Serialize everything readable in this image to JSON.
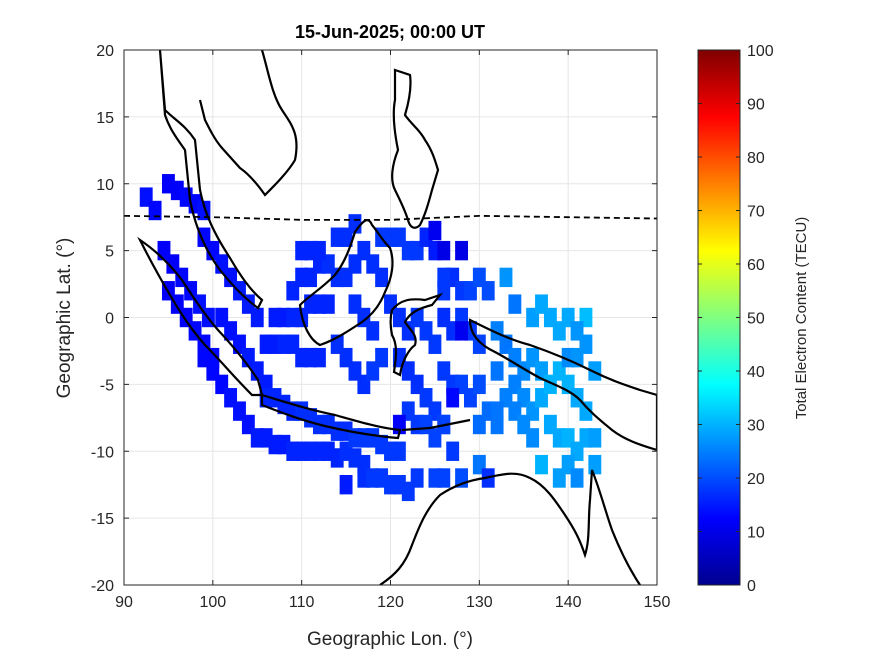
{
  "chart_data": {
    "type": "heatmap",
    "title": "15-Jun-2025; 00:00 UT",
    "xlabel": "Geographic Lon. (°)",
    "ylabel": "Geographic Lat. (°)",
    "xlim": [
      90,
      150
    ],
    "ylim": [
      -20,
      20
    ],
    "xticks": [
      "90",
      "100",
      "110",
      "120",
      "130",
      "140",
      "150"
    ],
    "yticks": [
      "20",
      "15",
      "10",
      "5",
      "0",
      "-5",
      "-10",
      "-15",
      "-20"
    ],
    "grid": true,
    "colorbar": {
      "label": "Total Electron Content (TECU)",
      "range": [
        0,
        100
      ],
      "ticks": [
        "100",
        "90",
        "80",
        "70",
        "60",
        "50",
        "40",
        "30",
        "20",
        "10",
        "0"
      ],
      "colormap": "jet"
    },
    "magnetic_equator": [
      [
        90,
        7.6
      ],
      [
        100,
        7.5
      ],
      [
        110,
        7.3
      ],
      [
        120,
        7.3
      ],
      [
        130,
        7.6
      ],
      [
        140,
        7.5
      ],
      [
        150,
        7.4
      ]
    ],
    "points": [
      [
        92.5,
        9,
        14
      ],
      [
        93.5,
        8,
        13
      ],
      [
        95,
        10,
        12
      ],
      [
        96,
        9.5,
        12
      ],
      [
        97,
        9,
        13
      ],
      [
        98,
        8.5,
        13
      ],
      [
        99,
        8,
        14
      ],
      [
        94.5,
        5,
        12
      ],
      [
        95.5,
        4,
        12
      ],
      [
        96.5,
        3,
        13
      ],
      [
        97.5,
        2,
        13
      ],
      [
        98.5,
        1,
        14
      ],
      [
        99.5,
        0,
        14
      ],
      [
        95,
        2,
        12
      ],
      [
        96,
        1,
        12
      ],
      [
        97,
        0,
        12
      ],
      [
        98,
        -1,
        13
      ],
      [
        99,
        -2,
        13
      ],
      [
        100,
        -3,
        13
      ],
      [
        99,
        6,
        13
      ],
      [
        100,
        5,
        13
      ],
      [
        101,
        4,
        14
      ],
      [
        102,
        3,
        14
      ],
      [
        103,
        2,
        15
      ],
      [
        104,
        1,
        15
      ],
      [
        105,
        0,
        15
      ],
      [
        101,
        0,
        14
      ],
      [
        102,
        -1,
        14
      ],
      [
        103,
        -2,
        14
      ],
      [
        104,
        -3,
        15
      ],
      [
        105,
        -4,
        15
      ],
      [
        106,
        -5,
        15
      ],
      [
        99,
        -3,
        13
      ],
      [
        100,
        -4,
        13
      ],
      [
        101,
        -5,
        13
      ],
      [
        102,
        -6,
        14
      ],
      [
        103,
        -7,
        14
      ],
      [
        104,
        -8,
        14
      ],
      [
        105,
        -9,
        15
      ],
      [
        106,
        -9,
        15
      ],
      [
        107,
        -9.5,
        15
      ],
      [
        108,
        -9.5,
        15
      ],
      [
        109,
        -10,
        16
      ],
      [
        110,
        -10,
        16
      ],
      [
        111,
        -10,
        16
      ],
      [
        112,
        -10,
        16
      ],
      [
        113,
        -10,
        16
      ],
      [
        114,
        -10.5,
        16
      ],
      [
        115,
        -10,
        17
      ],
      [
        116,
        -10.5,
        17
      ],
      [
        117,
        -11,
        17
      ],
      [
        106,
        -6,
        16
      ],
      [
        107,
        -6,
        16
      ],
      [
        108,
        -6.5,
        16
      ],
      [
        109,
        -7,
        16
      ],
      [
        110,
        -7,
        17
      ],
      [
        111,
        -7.5,
        17
      ],
      [
        112,
        -8,
        17
      ],
      [
        113,
        -8,
        17
      ],
      [
        114,
        -8.5,
        17
      ],
      [
        115,
        -8.5,
        17
      ],
      [
        116,
        -9,
        18
      ],
      [
        117,
        -9,
        18
      ],
      [
        118,
        -9,
        18
      ],
      [
        119,
        -9.5,
        18
      ],
      [
        120,
        -10,
        18
      ],
      [
        121,
        -10,
        18
      ],
      [
        106,
        -2,
        15
      ],
      [
        107,
        -2,
        15
      ],
      [
        108,
        -2,
        16
      ],
      [
        109,
        -2,
        16
      ],
      [
        110,
        -3,
        16
      ],
      [
        111,
        -3,
        16
      ],
      [
        112,
        -3,
        16
      ],
      [
        107,
        0,
        15
      ],
      [
        108,
        0,
        15
      ],
      [
        109,
        0,
        16
      ],
      [
        110,
        0,
        16
      ],
      [
        111,
        1,
        16
      ],
      [
        112,
        1,
        16
      ],
      [
        113,
        1,
        16
      ],
      [
        109,
        2,
        16
      ],
      [
        110,
        3,
        16
      ],
      [
        111,
        3,
        16
      ],
      [
        112,
        4,
        16
      ],
      [
        113,
        4,
        17
      ],
      [
        114,
        3,
        17
      ],
      [
        115,
        3,
        17
      ],
      [
        116,
        4,
        17
      ],
      [
        117,
        5,
        17
      ],
      [
        118,
        4,
        17
      ],
      [
        119,
        3,
        17
      ],
      [
        116,
        1,
        17
      ],
      [
        117,
        0,
        17
      ],
      [
        118,
        -1,
        17
      ],
      [
        114,
        -2,
        17
      ],
      [
        115,
        -3,
        17
      ],
      [
        116,
        -4,
        17
      ],
      [
        117,
        -5,
        17
      ],
      [
        118,
        -4,
        18
      ],
      [
        119,
        -3,
        18
      ],
      [
        110,
        5,
        16
      ],
      [
        111,
        5,
        16
      ],
      [
        112,
        5,
        16
      ],
      [
        114,
        6,
        17
      ],
      [
        115,
        6,
        17
      ],
      [
        116,
        7,
        17
      ],
      [
        119,
        6,
        18
      ],
      [
        120,
        6,
        18
      ],
      [
        121,
        6,
        18
      ],
      [
        122,
        5,
        18
      ],
      [
        123,
        5,
        18
      ],
      [
        124,
        6,
        16
      ],
      [
        125,
        5,
        15
      ],
      [
        120,
        1,
        17
      ],
      [
        121,
        0,
        17
      ],
      [
        122,
        -1,
        17
      ],
      [
        123,
        0,
        18
      ],
      [
        124,
        -1,
        18
      ],
      [
        125,
        -2,
        18
      ],
      [
        121,
        -3,
        17
      ],
      [
        122,
        -4,
        17
      ],
      [
        123,
        -5,
        17
      ],
      [
        124,
        -6,
        18
      ],
      [
        125,
        -7,
        18
      ],
      [
        126,
        -8,
        18
      ],
      [
        122,
        -7,
        18
      ],
      [
        123,
        -8,
        18
      ],
      [
        124,
        -8,
        19
      ],
      [
        125,
        -9,
        19
      ],
      [
        126,
        -8,
        19
      ],
      [
        126,
        2,
        18
      ],
      [
        127,
        3,
        17
      ],
      [
        128,
        2,
        18
      ],
      [
        129,
        2,
        19
      ],
      [
        130,
        3,
        20
      ],
      [
        131,
        2,
        20
      ],
      [
        126,
        0,
        17
      ],
      [
        127,
        -1,
        17
      ],
      [
        128,
        0,
        18
      ],
      [
        129,
        -1,
        18
      ],
      [
        130,
        -2,
        19
      ],
      [
        126,
        -4,
        18
      ],
      [
        127,
        -5,
        18
      ],
      [
        128,
        -5,
        19
      ],
      [
        129,
        -6,
        19
      ],
      [
        130,
        -5,
        20
      ],
      [
        117,
        -12,
        17
      ],
      [
        118,
        -12,
        18
      ],
      [
        119,
        -12,
        18
      ],
      [
        120,
        -12.5,
        18
      ],
      [
        121,
        -12.5,
        18
      ],
      [
        122,
        -13,
        18
      ],
      [
        123,
        -12,
        18
      ],
      [
        125,
        -12,
        19
      ],
      [
        126,
        -12,
        19
      ],
      [
        128,
        -12,
        20
      ],
      [
        115,
        -12.5,
        15
      ],
      [
        126,
        5,
        10
      ],
      [
        128,
        5,
        10
      ],
      [
        125,
        6.5,
        11
      ],
      [
        128,
        -1,
        11
      ],
      [
        127,
        -6,
        13
      ],
      [
        121,
        -8,
        12
      ],
      [
        133,
        3,
        27
      ],
      [
        134,
        1,
        24
      ],
      [
        136,
        0,
        28
      ],
      [
        137,
        1,
        29
      ],
      [
        138,
        0,
        29
      ],
      [
        139,
        -1,
        29
      ],
      [
        140,
        0,
        29
      ],
      [
        142,
        0,
        31
      ],
      [
        132,
        -1,
        25
      ],
      [
        133,
        -2,
        24
      ],
      [
        134,
        -3,
        25
      ],
      [
        135,
        -4,
        26
      ],
      [
        136,
        -3,
        27
      ],
      [
        137,
        -4,
        28
      ],
      [
        132,
        -4,
        24
      ],
      [
        133,
        -6,
        25
      ],
      [
        134,
        -5,
        25
      ],
      [
        135,
        -6,
        26
      ],
      [
        136,
        -7,
        27
      ],
      [
        137,
        -6,
        29
      ],
      [
        138,
        -5,
        30
      ],
      [
        139,
        -4,
        30
      ],
      [
        140,
        -5,
        30
      ],
      [
        141,
        -6,
        29
      ],
      [
        142,
        -7,
        29
      ],
      [
        143,
        -4,
        28
      ],
      [
        138,
        -8,
        29
      ],
      [
        139,
        -9,
        29
      ],
      [
        140,
        -9,
        30
      ],
      [
        141,
        -10,
        29
      ],
      [
        142,
        -9,
        29
      ],
      [
        143,
        -9,
        28
      ],
      [
        130,
        -8,
        23
      ],
      [
        131,
        -7,
        23
      ],
      [
        132,
        -8,
        24
      ],
      [
        134,
        -7,
        25
      ],
      [
        135,
        -8,
        26
      ],
      [
        136,
        -9,
        26
      ],
      [
        140,
        -11,
        28
      ],
      [
        141,
        -12,
        26
      ],
      [
        137,
        -11,
        30
      ],
      [
        139,
        -12,
        28
      ],
      [
        143,
        -11,
        28
      ],
      [
        130,
        -11,
        24
      ],
      [
        141,
        -1,
        27
      ],
      [
        140,
        -3,
        26
      ],
      [
        132,
        -7,
        24
      ],
      [
        141,
        -3,
        27
      ],
      [
        142,
        -2,
        27
      ],
      [
        131,
        -12,
        17
      ],
      [
        126,
        3,
        18
      ],
      [
        127,
        -10,
        18
      ]
    ]
  }
}
